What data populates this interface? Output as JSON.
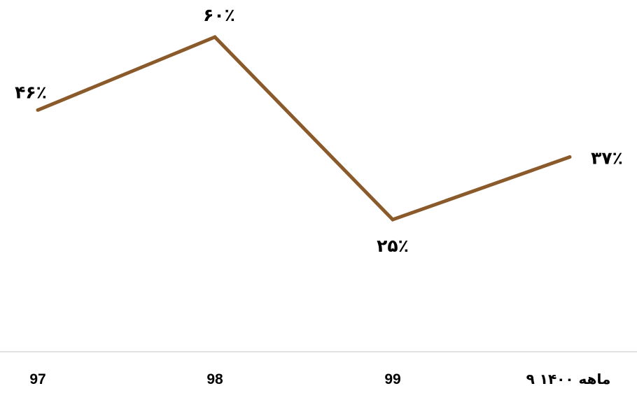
{
  "chart_data": {
    "type": "line",
    "categories": [
      "97",
      "98",
      "99",
      "۹ ماهه ۱۴۰۰"
    ],
    "series": [
      {
        "values": [
          46,
          60,
          25,
          37
        ],
        "data_labels": [
          "۴۶٪",
          "۶۰٪",
          "۲۵٪",
          "۳۷٪"
        ],
        "color": "#8B5A2B"
      }
    ],
    "title": "",
    "xlabel": "",
    "ylabel": "",
    "grid": false,
    "legend": "none"
  }
}
